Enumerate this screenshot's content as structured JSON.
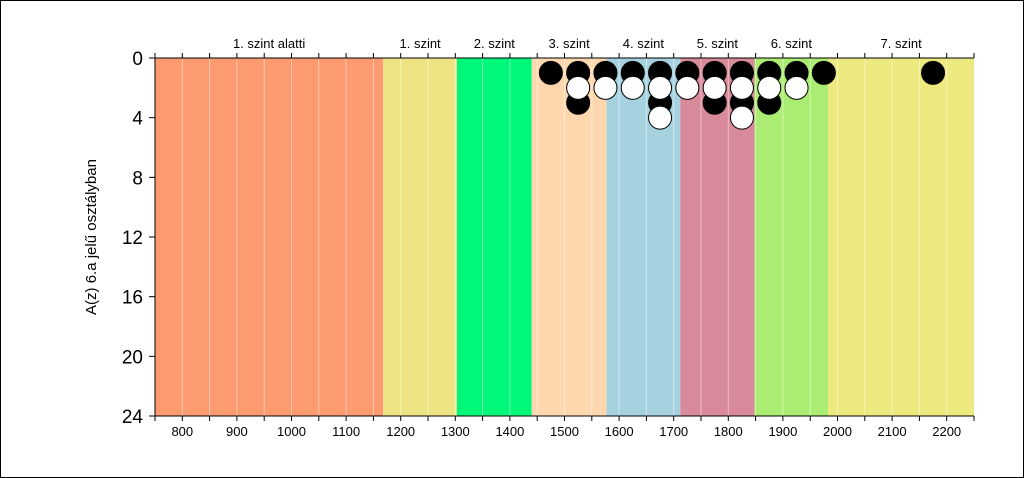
{
  "chart_data": {
    "type": "scatter",
    "ylabel": "A(z) 6.a jelű osztályban",
    "x_ticks": [
      800,
      900,
      1000,
      1100,
      1200,
      1300,
      1400,
      1500,
      1600,
      1700,
      1800,
      1900,
      2000,
      2100,
      2200
    ],
    "y_ticks": [
      0,
      4,
      8,
      12,
      16,
      20,
      24
    ],
    "xlim": [
      750,
      2250
    ],
    "ylim_inverted": [
      0,
      24
    ],
    "levels": [
      {
        "label": "1. szint alatti",
        "from": 750,
        "to": 1168,
        "color": "#fc9a70"
      },
      {
        "label": "1. szint",
        "from": 1168,
        "to": 1303,
        "color": "#ede383"
      },
      {
        "label": "2. szint",
        "from": 1303,
        "to": 1440,
        "color": "#00f87a"
      },
      {
        "label": "3. szint",
        "from": 1440,
        "to": 1577,
        "color": "#ffd7ae"
      },
      {
        "label": "4. szint",
        "from": 1577,
        "to": 1712,
        "color": "#a6d2e0"
      },
      {
        "label": "5. szint",
        "from": 1712,
        "to": 1848,
        "color": "#d88a9a"
      },
      {
        "label": "6. szint",
        "from": 1848,
        "to": 1983,
        "color": "#aaed72"
      },
      {
        "label": "7. szint",
        "from": 1983,
        "to": 2250,
        "color": "#ece97e"
      }
    ],
    "series": [
      {
        "marker_color": "#000000",
        "points": [
          {
            "x": 1475,
            "y": 1
          },
          {
            "x": 1525,
            "y": 1
          },
          {
            "x": 1525,
            "y": 3
          },
          {
            "x": 1575,
            "y": 1
          },
          {
            "x": 1625,
            "y": 1
          },
          {
            "x": 1675,
            "y": 1
          },
          {
            "x": 1675,
            "y": 3
          },
          {
            "x": 1725,
            "y": 1
          },
          {
            "x": 1775,
            "y": 1
          },
          {
            "x": 1775,
            "y": 3
          },
          {
            "x": 1825,
            "y": 1
          },
          {
            "x": 1825,
            "y": 3
          },
          {
            "x": 1875,
            "y": 1
          },
          {
            "x": 1875,
            "y": 3
          },
          {
            "x": 1925,
            "y": 1
          },
          {
            "x": 1975,
            "y": 1
          },
          {
            "x": 2175,
            "y": 1
          }
        ]
      },
      {
        "marker_color": "#ffffff",
        "points": [
          {
            "x": 1525,
            "y": 2
          },
          {
            "x": 1575,
            "y": 2
          },
          {
            "x": 1625,
            "y": 2
          },
          {
            "x": 1675,
            "y": 2
          },
          {
            "x": 1675,
            "y": 4
          },
          {
            "x": 1725,
            "y": 2
          },
          {
            "x": 1775,
            "y": 2
          },
          {
            "x": 1825,
            "y": 2
          },
          {
            "x": 1825,
            "y": 4
          },
          {
            "x": 1875,
            "y": 2
          },
          {
            "x": 1925,
            "y": 2
          }
        ]
      }
    ],
    "grid": "vertical"
  }
}
